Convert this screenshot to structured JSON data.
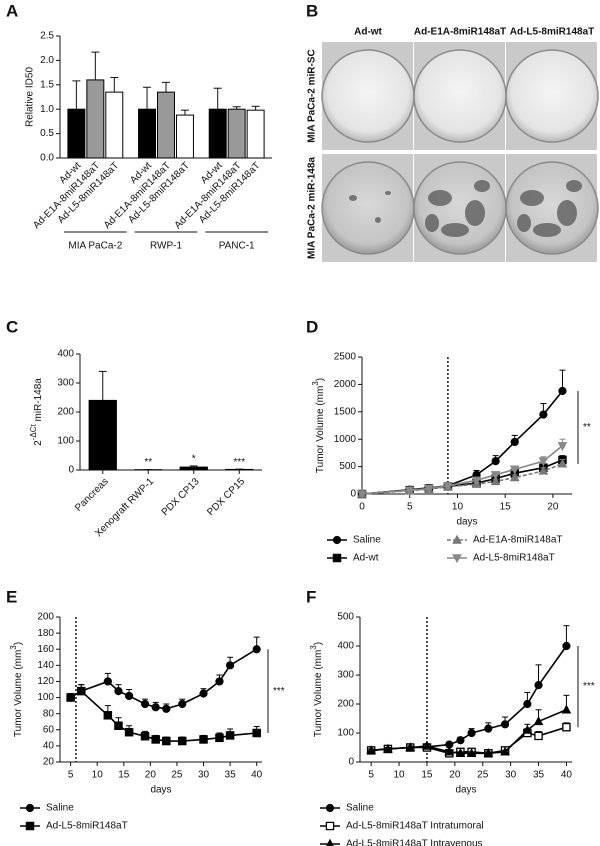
{
  "panel_labels": [
    "A",
    "B",
    "C",
    "D",
    "E",
    "F"
  ],
  "image_panel": {
    "columns": [
      "Ad-wt",
      "Ad-E1A-8miR148aT",
      "Ad-L5-8miR148aT"
    ],
    "rows": [
      "MIA PaCa-2 miR-SC",
      "MIA PaCa-2 miR-148a"
    ]
  },
  "chart_data": [
    {
      "type": "bar",
      "ylabel": "Relative ID50",
      "categories": [
        "MIA PaCa-2",
        "RWP-1",
        "PANC-1"
      ],
      "series": [
        {
          "name": "Ad-wt",
          "color": "#000000",
          "values": [
            1.0,
            1.0,
            1.0
          ],
          "errors": [
            0.58,
            0.45,
            0.43
          ]
        },
        {
          "name": "Ad-E1A-8miR148aT",
          "color": "#999999",
          "values": [
            1.6,
            1.35,
            1.0
          ],
          "errors": [
            0.57,
            0.2,
            0.05
          ]
        },
        {
          "name": "Ad-L5-8miR148aT",
          "color": "#ffffff",
          "values": [
            1.35,
            0.88,
            0.98
          ],
          "errors": [
            0.3,
            0.1,
            0.08
          ]
        }
      ],
      "ylim": [
        0,
        2.5
      ],
      "yticks": [
        {
          "value": 0,
          "label": "0.0"
        },
        {
          "value": 0.5,
          "label": "0.5"
        },
        {
          "value": 1,
          "label": "1.0"
        },
        {
          "value": 1.5,
          "label": "1.5"
        },
        {
          "value": 2,
          "label": "2.0"
        },
        {
          "value": 2.5,
          "label": "2.5"
        }
      ]
    },
    {
      "type": "bar",
      "ylabel": [
        {
          "text": "2"
        },
        {
          "text": "-ΔCt",
          "sup": true
        },
        {
          "text": " miR-148a"
        }
      ],
      "categories": [
        "Pancreas",
        "Xenograft RWP-1",
        "PDX CP13",
        "PDX CP15"
      ],
      "values": [
        240,
        1,
        10,
        2
      ],
      "errors": [
        100,
        0.5,
        4,
        1
      ],
      "value_annotations": [
        null,
        "**",
        "*",
        "***"
      ],
      "color": "#000000",
      "ylim": [
        0,
        400
      ],
      "yticks": [
        0,
        100,
        200,
        300,
        400
      ]
    },
    {
      "type": "line",
      "ylabel": [
        {
          "text": "Tumor Volume (mm"
        },
        {
          "text": "3",
          "sup": true
        },
        {
          "text": ")"
        }
      ],
      "xlabel": "days",
      "x": [
        0,
        5,
        7,
        9,
        12,
        14,
        16,
        19,
        21
      ],
      "series": [
        {
          "name": "Saline",
          "color": "#000000",
          "marker": "circle",
          "values": [
            0,
            80,
            110,
            150,
            350,
            600,
            950,
            1450,
            1880
          ],
          "errors": [
            0,
            20,
            20,
            30,
            80,
            100,
            120,
            200,
            380
          ]
        },
        {
          "name": "Ad-wt",
          "color": "#000000",
          "marker": "square",
          "values": [
            0,
            70,
            100,
            140,
            200,
            280,
            380,
            480,
            620
          ],
          "errors": [
            0,
            10,
            15,
            20,
            30,
            40,
            50,
            60,
            80
          ]
        },
        {
          "name": "Ad-E1A-8miR148aT",
          "color": "#777777",
          "marker": "triangle",
          "dash": true,
          "values": [
            0,
            60,
            90,
            130,
            180,
            230,
            300,
            420,
            550
          ],
          "errors": [
            0,
            10,
            15,
            20,
            30,
            40,
            50,
            60,
            80
          ]
        },
        {
          "name": "Ad-L5-8miR148aT",
          "color": "#888888",
          "marker": "triangle-down",
          "values": [
            0,
            70,
            100,
            150,
            250,
            350,
            450,
            600,
            880
          ],
          "errors": [
            0,
            10,
            15,
            20,
            40,
            50,
            60,
            80,
            120
          ]
        }
      ],
      "xlim": [
        0,
        22
      ],
      "xticks": [
        0,
        5,
        10,
        15,
        20
      ],
      "ylim": [
        0,
        2500
      ],
      "yticks": [
        0,
        500,
        1000,
        1500,
        2000,
        2500
      ],
      "vline": 9,
      "significance": "**"
    },
    {
      "type": "line",
      "ylabel": [
        {
          "text": "Tumor Volume (mm"
        },
        {
          "text": "3",
          "sup": true
        },
        {
          "text": ")"
        }
      ],
      "xlabel": "days",
      "x": [
        5,
        7,
        12,
        14,
        16,
        19,
        21,
        23,
        26,
        30,
        33,
        35,
        40
      ],
      "series": [
        {
          "name": "Saline",
          "color": "#000000",
          "marker": "circle",
          "values": [
            100,
            108,
            120,
            108,
            102,
            92,
            88,
            86,
            92,
            105,
            120,
            140,
            160
          ],
          "errors": [
            5,
            8,
            10,
            8,
            8,
            6,
            6,
            6,
            6,
            6,
            8,
            10,
            15
          ]
        },
        {
          "name": "Ad-L5-8miR148aT",
          "color": "#000000",
          "marker": "square",
          "values": [
            100,
            108,
            78,
            65,
            57,
            52,
            48,
            46,
            46,
            48,
            50,
            53,
            56
          ],
          "errors": [
            5,
            8,
            12,
            10,
            8,
            6,
            5,
            5,
            5,
            5,
            6,
            8,
            8
          ]
        }
      ],
      "xlim": [
        3,
        41
      ],
      "xticks": [
        5,
        10,
        15,
        20,
        25,
        30,
        35,
        40
      ],
      "ylim": [
        20,
        200
      ],
      "yticks": [
        20,
        40,
        60,
        80,
        100,
        120,
        140,
        160,
        180,
        200
      ],
      "vline": 6,
      "significance": "***"
    },
    {
      "type": "line",
      "ylabel": [
        {
          "text": "Tumor Volume (mm"
        },
        {
          "text": "3",
          "sup": true
        },
        {
          "text": ")"
        }
      ],
      "xlabel": "days",
      "x": [
        5,
        8,
        12,
        15,
        19,
        21,
        23,
        26,
        29,
        33,
        35,
        40
      ],
      "series": [
        {
          "name": "Saline",
          "color": "#000000",
          "marker": "circle",
          "values": [
            40,
            45,
            50,
            52,
            60,
            75,
            100,
            115,
            130,
            200,
            265,
            400
          ],
          "errors": [
            5,
            5,
            5,
            5,
            8,
            10,
            15,
            20,
            25,
            40,
            70,
            70
          ]
        },
        {
          "name": "Ad-L5-8miR148aT Intratumoral",
          "color": "#000000",
          "marker": "square",
          "open": true,
          "values": [
            40,
            45,
            50,
            50,
            30,
            35,
            35,
            30,
            40,
            100,
            90,
            120
          ],
          "errors": [
            5,
            5,
            5,
            5,
            5,
            5,
            5,
            5,
            5,
            15,
            15,
            15
          ]
        },
        {
          "name": "Ad-L5-8miR148aT Intravenous",
          "color": "#000000",
          "marker": "triangle",
          "values": [
            40,
            45,
            50,
            55,
            35,
            30,
            30,
            30,
            35,
            110,
            140,
            180
          ],
          "errors": [
            5,
            5,
            5,
            5,
            5,
            5,
            5,
            5,
            5,
            20,
            40,
            50
          ]
        }
      ],
      "xlim": [
        3,
        41
      ],
      "xticks": [
        5,
        10,
        15,
        20,
        25,
        30,
        35,
        40
      ],
      "ylim": [
        0,
        500
      ],
      "yticks": [
        0,
        100,
        200,
        300,
        400,
        500
      ],
      "vline": 15,
      "significance": "***"
    }
  ]
}
